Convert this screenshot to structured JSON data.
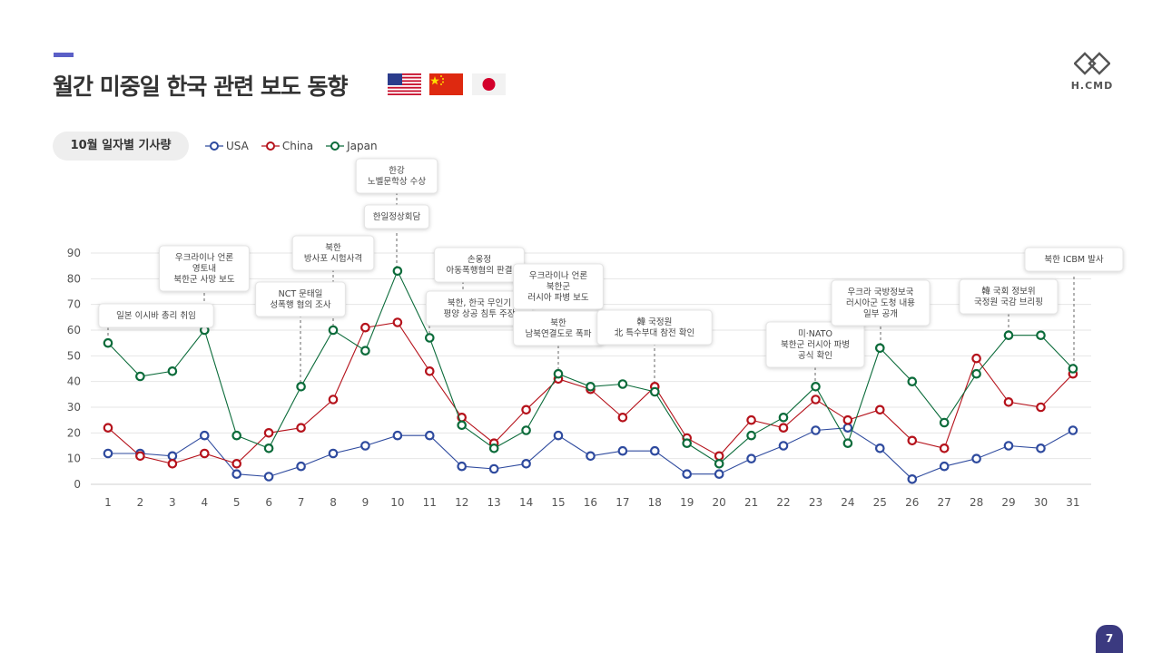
{
  "page": {
    "title": "월간 미중일 한국 관련 보도 동향",
    "page_number": "7"
  },
  "logo": {
    "text": "H.CMD"
  },
  "flags": [
    "us-flag-icon",
    "china-flag-icon",
    "japan-flag-icon"
  ],
  "section_pill": "10월 일자별 기사량",
  "chart_data": {
    "type": "line",
    "title": "",
    "xlabel": "",
    "ylabel": "",
    "ylim": [
      0,
      90
    ],
    "yticks": [
      0,
      10,
      20,
      30,
      40,
      50,
      60,
      70,
      80,
      90
    ],
    "grid": true,
    "legend_position": "top-left",
    "x": [
      1,
      2,
      3,
      4,
      5,
      6,
      7,
      8,
      9,
      10,
      11,
      12,
      13,
      14,
      15,
      16,
      17,
      18,
      19,
      20,
      21,
      22,
      23,
      24,
      25,
      26,
      27,
      28,
      29,
      30,
      31
    ],
    "series": [
      {
        "name": "USA",
        "color": "#2e4a9e",
        "values": [
          12,
          12,
          11,
          19,
          4,
          3,
          7,
          12,
          15,
          19,
          19,
          7,
          6,
          8,
          19,
          11,
          13,
          13,
          4,
          4,
          10,
          15,
          21,
          22,
          14,
          2,
          7,
          10,
          15,
          14,
          21
        ]
      },
      {
        "name": "China",
        "color": "#b5121b",
        "values": [
          22,
          11,
          8,
          12,
          8,
          20,
          22,
          33,
          61,
          63,
          44,
          26,
          16,
          29,
          41,
          37,
          26,
          38,
          18,
          11,
          25,
          22,
          33,
          25,
          29,
          17,
          14,
          49,
          32,
          30,
          43
        ]
      },
      {
        "name": "Japan",
        "color": "#0b6b3a",
        "values": [
          55,
          42,
          44,
          60,
          19,
          14,
          38,
          60,
          52,
          83,
          57,
          23,
          14,
          21,
          43,
          38,
          39,
          36,
          16,
          8,
          19,
          26,
          38,
          16,
          53,
          40,
          24,
          43,
          58,
          58,
          45
        ]
      }
    ],
    "annotations": [
      {
        "day": 1,
        "lines": [
          "일본 이시바 총리 취임"
        ]
      },
      {
        "day": 4,
        "lines": [
          "우크라이나 언론",
          "영토내",
          "북한군 사망 보도"
        ]
      },
      {
        "day": 7,
        "lines": [
          "NCT 문태일",
          "성폭행 혐의 조사"
        ]
      },
      {
        "day": 8,
        "lines": [
          "북한",
          "방사포 시험사격"
        ]
      },
      {
        "day": 10,
        "lines": [
          "한강",
          "노벨문학상 수상"
        ]
      },
      {
        "day": 10,
        "lines": [
          "한일정상회담"
        ]
      },
      {
        "day": 11,
        "lines": [
          "북한, 한국 무인기",
          "평양 상공 침투 주장"
        ]
      },
      {
        "day": 12,
        "lines": [
          "손웅정",
          "아동폭행혐의 판결"
        ]
      },
      {
        "day": 15,
        "lines": [
          "우크라이나 언론",
          "북한군",
          "러시아 파병 보도"
        ]
      },
      {
        "day": 15,
        "lines": [
          "북한",
          "남북연결도로 폭파"
        ]
      },
      {
        "day": 18,
        "lines": [
          "韓 국정원",
          "北 특수부대 참전 확인"
        ]
      },
      {
        "day": 23,
        "lines": [
          "미·NATO",
          "북한군 러시아 파병",
          "공식 확인"
        ]
      },
      {
        "day": 25,
        "lines": [
          "우크라 국방정보국",
          "러시아군 도청 내용",
          "일부 공개"
        ]
      },
      {
        "day": 29,
        "lines": [
          "韓 국회 정보위",
          "국정원 국감 브리핑"
        ]
      },
      {
        "day": 31,
        "lines": [
          "북한 ICBM 발사"
        ]
      }
    ]
  }
}
